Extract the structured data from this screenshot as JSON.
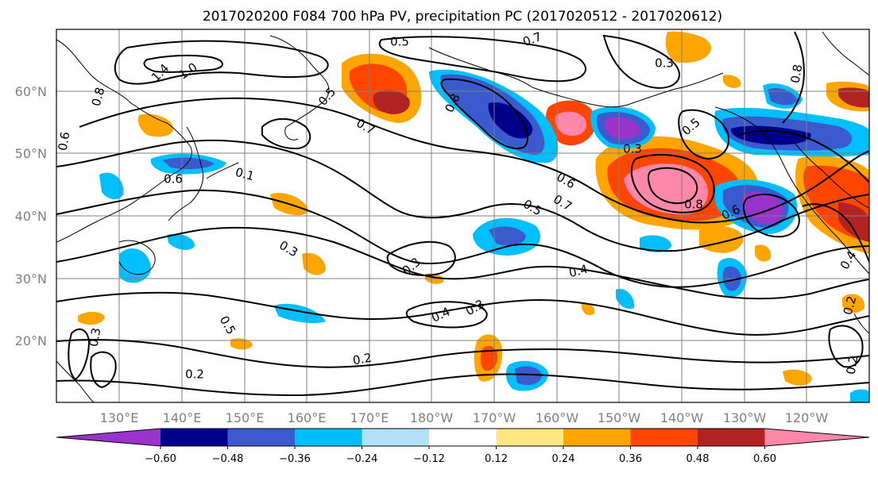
{
  "title": "2017020200 F084 700 hPa PV, precipitation PC (2017020512 - 2017020612)",
  "lat_labels": [
    "60°N",
    "50°N",
    "40°N",
    "30°N",
    "20°N"
  ],
  "lon_labels": [
    "130°E",
    "140°E",
    "150°E",
    "160°E",
    "170°E",
    "180°W",
    "170°W",
    "160°W",
    "150°W",
    "140°W",
    "130°W",
    "120°W"
  ],
  "colorbar": {
    "ticks": [
      "−0.60",
      "−0.48",
      "−0.36",
      "−0.24",
      "−0.12",
      "0.12",
      "0.24",
      "0.36",
      "0.48",
      "0.60"
    ],
    "colors": [
      "#9933cc",
      "#00008b",
      "#3a5acd",
      "#00bfff",
      "#b0e0fa",
      "#ffffff",
      "#ffe680",
      "#ffa500",
      "#ff4500",
      "#b22222",
      "#ff88aa"
    ]
  },
  "contour_labels": [
    "0.5",
    "0.7",
    "0.3",
    "1.4",
    "1.0",
    "0.8",
    "0.6",
    "0.5",
    "0.7",
    "0.8",
    "0.3",
    "0.5",
    "0.8",
    "0.6",
    "0.1",
    "0.6",
    "0.5",
    "0.7",
    "0.8",
    "0.6",
    "0.4",
    "0.3",
    "0.3",
    "0.4",
    "0.3",
    "0.5",
    "0.3",
    "0.2",
    "0.2",
    "0.2",
    "0.4",
    "0.2"
  ],
  "colors": {
    "grid": "#7f7f7f",
    "contour": "#000000",
    "frame": "#000000"
  }
}
